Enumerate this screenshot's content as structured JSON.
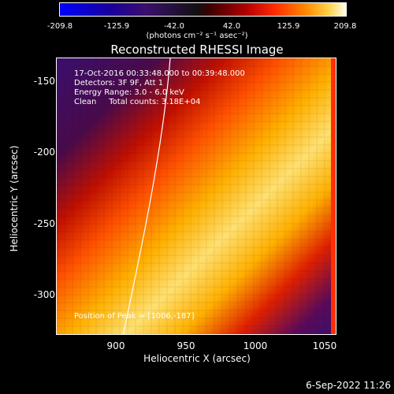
{
  "colorbar": {
    "ticks": [
      "-209.8",
      "-125.9",
      "-42.0",
      "42.0",
      "125.9",
      "209.8"
    ],
    "units": "(photons cm⁻² s⁻¹ asec⁻²)"
  },
  "title": "Reconstructed RHESSI Image",
  "info": {
    "time": "17-Oct-2016 00:33:48.000 to 00:39:48.000",
    "detectors": "Detectors: 3F 9F, Att 1",
    "energy": "Energy Range: 3.0 - 6.0 keV",
    "method": "Clean     Total counts: 3.18E+04"
  },
  "peak": "Position of Peak = [1006,-187]",
  "axes": {
    "xlabel": "Heliocentric X (arcsec)",
    "ylabel": "Heliocentric Y (arcsec)",
    "xticks": [
      "900",
      "950",
      "1000",
      "1050"
    ],
    "yticks": [
      "-150",
      "-200",
      "-250",
      "-300"
    ]
  },
  "footer_date": "6-Sep-2022 11:26"
}
